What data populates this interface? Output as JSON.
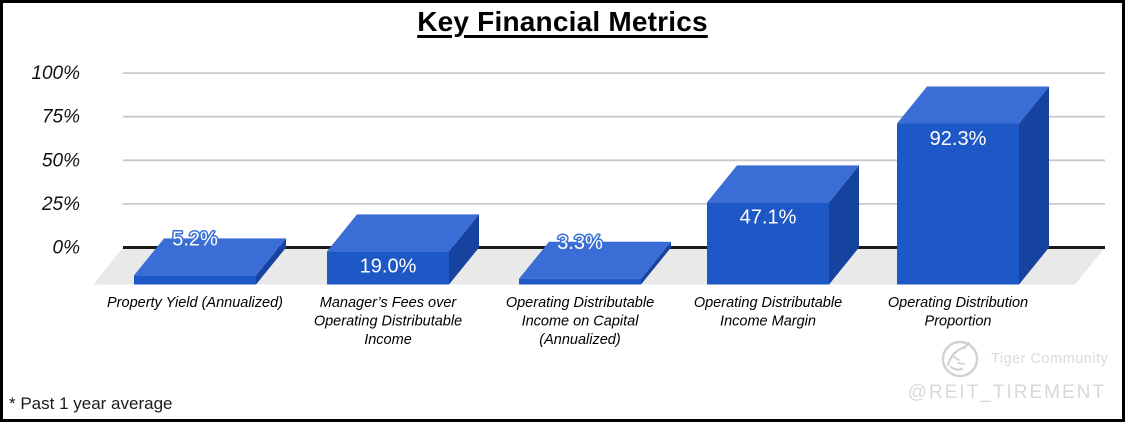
{
  "page": {
    "title": "Key Financial Metrics",
    "footnote": "* Past 1 year average"
  },
  "watermark": {
    "brand": "Tiger Community",
    "handle": "@REIT_TIREMENT"
  },
  "chart_data": {
    "type": "bar",
    "projection": "3d",
    "title": "Key Financial Metrics",
    "xlabel": "",
    "ylabel": "",
    "ylim": [
      0,
      100
    ],
    "grid": true,
    "legend_position": "none",
    "yticks": [
      {
        "value": 0,
        "label": "0%"
      },
      {
        "value": 25,
        "label": "25%"
      },
      {
        "value": 50,
        "label": "50%"
      },
      {
        "value": 75,
        "label": "75%"
      },
      {
        "value": 100,
        "label": "100%"
      }
    ],
    "categories": [
      "Property Yield (Annualized)",
      "Manager’s Fees over Operating Distributable Income",
      "Operating Distributable Income on Capital (Annualized)",
      "Operating Distributable Income Margin",
      "Operating Distribution Proportion"
    ],
    "category_lines": [
      [
        "Property Yield (Annualized)"
      ],
      [
        "Manager’s Fees over",
        "Operating Distributable",
        "Income"
      ],
      [
        "Operating Distributable",
        "Income on Capital",
        "(Annualized)"
      ],
      [
        "Operating Distributable",
        "Income Margin"
      ],
      [
        "Operating Distribution",
        "Proportion"
      ]
    ],
    "series": [
      {
        "name": "Key Financial Metrics",
        "values": [
          5.2,
          19.0,
          3.3,
          47.1,
          92.3
        ],
        "data_labels": [
          "5.2%",
          "19.0%",
          "3.3%",
          "47.1%",
          "92.3%"
        ]
      }
    ],
    "colors": {
      "bar_front": "#1e57c6",
      "bar_top": "#3b6dd6",
      "bar_side": "#16439f",
      "floor": "#e9e9e9",
      "gridline": "#c9c9c9",
      "zero_line": "#1a1a1a",
      "label_text": "#ffffff",
      "small_label_outline": "#3a70d4",
      "tick_text": "#111111",
      "category_text": "#000000"
    }
  }
}
